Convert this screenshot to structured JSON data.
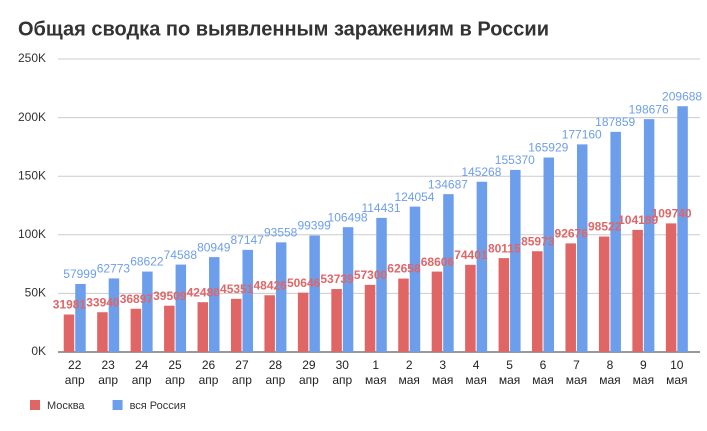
{
  "chart_data": {
    "type": "bar",
    "title": "Общая сводка по выявленным заражениям в России",
    "categories": [
      "22\nапр",
      "23\nапр",
      "24\nапр",
      "25\nапр",
      "26\nапр",
      "27\nапр",
      "28\nапр",
      "29\nапр",
      "30\nапр",
      "1\nмая",
      "2\nмая",
      "3\nмая",
      "4\nмая",
      "5\nмая",
      "6\nмая",
      "7\nмая",
      "8\nмая",
      "9\nмая",
      "10\nмая"
    ],
    "series": [
      {
        "name": "Москва",
        "color": "#e06666",
        "values": [
          31981,
          33940,
          36897,
          39509,
          42480,
          45351,
          48426,
          50646,
          53739,
          57300,
          62658,
          68606,
          74401,
          80115,
          85973,
          92676,
          98522,
          104189,
          109740
        ]
      },
      {
        "name": "вся Россия",
        "color": "#6d9eeb",
        "values": [
          57999,
          62773,
          68622,
          74588,
          80949,
          87147,
          93558,
          99399,
          106498,
          114431,
          124054,
          134687,
          145268,
          155370,
          165929,
          177160,
          187859,
          198676,
          209688
        ]
      }
    ],
    "ylim": [
      0,
      250000
    ],
    "yticks": [
      {
        "value": 0,
        "label": "0K"
      },
      {
        "value": 50000,
        "label": "50K"
      },
      {
        "value": 100000,
        "label": "100K"
      },
      {
        "value": 150000,
        "label": "150K"
      },
      {
        "value": 200000,
        "label": "200K"
      },
      {
        "value": 250000,
        "label": "250K"
      }
    ],
    "grid": true,
    "legend": "bottom"
  }
}
